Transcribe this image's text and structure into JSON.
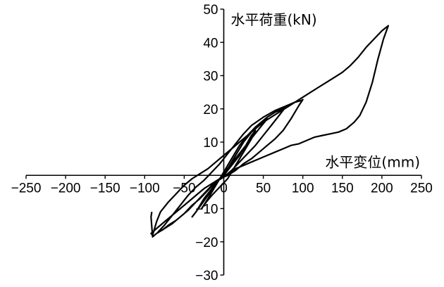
{
  "chart_data": {
    "type": "line",
    "title": "",
    "xlabel": "水平変位(mm)",
    "ylabel": "水平荷重(kN)",
    "xlim": [
      -250,
      250
    ],
    "ylim": [
      -30,
      50
    ],
    "x_ticks": [
      -250,
      -200,
      -150,
      -100,
      -50,
      0,
      50,
      100,
      150,
      200,
      250
    ],
    "y_ticks": [
      -30,
      -20,
      -10,
      10,
      20,
      30,
      40,
      50
    ],
    "x_tick_labels": [
      "−250",
      "−200",
      "−150",
      "−100",
      "−50",
      "0",
      "50",
      "100",
      "150",
      "200",
      "250"
    ],
    "y_tick_labels": [
      "−30",
      "−20",
      "−10",
      "10",
      "20",
      "30",
      "40",
      "50"
    ],
    "grid": false,
    "line_color": "#000000",
    "series": [
      {
        "values_xy": [
          [
            0,
            0
          ],
          [
            10,
            3
          ],
          [
            20,
            6
          ],
          [
            28,
            9
          ],
          [
            35,
            12
          ],
          [
            40,
            13.5
          ],
          [
            35,
            11
          ],
          [
            25,
            7
          ],
          [
            15,
            3
          ],
          [
            5,
            -1
          ],
          [
            -5,
            -3.5
          ],
          [
            -15,
            -6
          ],
          [
            -22,
            -8
          ],
          [
            -28,
            -10
          ],
          [
            -20,
            -7
          ],
          [
            -10,
            -3
          ],
          [
            0,
            1
          ],
          [
            10,
            5
          ],
          [
            20,
            9
          ],
          [
            30,
            12
          ],
          [
            40,
            14.5
          ],
          [
            50,
            16.5
          ],
          [
            55,
            17
          ],
          [
            48,
            15
          ],
          [
            38,
            12
          ],
          [
            28,
            9
          ],
          [
            18,
            6
          ],
          [
            8,
            3
          ],
          [
            -5,
            -1
          ],
          [
            -15,
            -4
          ],
          [
            -25,
            -7
          ],
          [
            -35,
            -11
          ],
          [
            -40,
            -12.5
          ],
          [
            -32,
            -10
          ],
          [
            -20,
            -6
          ],
          [
            -8,
            -2
          ],
          [
            5,
            2
          ],
          [
            15,
            6
          ],
          [
            25,
            10
          ],
          [
            35,
            13
          ],
          [
            45,
            15.5
          ],
          [
            55,
            17.5
          ],
          [
            65,
            19
          ],
          [
            75,
            20
          ],
          [
            78,
            20.5
          ],
          [
            70,
            18
          ],
          [
            60,
            15
          ],
          [
            50,
            12
          ],
          [
            40,
            9
          ],
          [
            30,
            6.5
          ],
          [
            20,
            4
          ],
          [
            10,
            1.5
          ],
          [
            0,
            -0.5
          ],
          [
            -10,
            -2
          ],
          [
            -20,
            -4.5
          ],
          [
            -30,
            -7
          ],
          [
            -40,
            -9
          ],
          [
            -50,
            -11.5
          ],
          [
            -60,
            -13.5
          ],
          [
            -70,
            -15
          ],
          [
            -78,
            -16.5
          ],
          [
            -83,
            -17
          ],
          [
            -75,
            -15
          ],
          [
            -65,
            -12
          ],
          [
            -55,
            -9
          ],
          [
            -45,
            -6
          ],
          [
            -35,
            -3.5
          ],
          [
            -25,
            -1.5
          ],
          [
            -15,
            1
          ],
          [
            -5,
            3.5
          ],
          [
            5,
            6.5
          ],
          [
            15,
            9.5
          ],
          [
            25,
            12.5
          ],
          [
            35,
            15
          ],
          [
            50,
            17.5
          ],
          [
            65,
            19.5
          ],
          [
            80,
            21
          ],
          [
            90,
            22
          ],
          [
            98,
            22.5
          ],
          [
            100,
            22.8
          ],
          [
            95,
            21
          ],
          [
            85,
            17
          ],
          [
            75,
            13.5
          ],
          [
            65,
            11
          ],
          [
            55,
            9
          ],
          [
            45,
            7
          ],
          [
            35,
            5
          ],
          [
            25,
            3.5
          ],
          [
            15,
            1.5
          ],
          [
            5,
            0
          ],
          [
            -5,
            -1
          ],
          [
            -15,
            -2.5
          ],
          [
            -25,
            -4
          ],
          [
            -35,
            -6
          ],
          [
            -45,
            -8
          ],
          [
            -55,
            -10
          ],
          [
            -65,
            -12
          ],
          [
            -75,
            -14
          ],
          [
            -85,
            -16
          ],
          [
            -92,
            -17.5
          ],
          [
            -90,
            -18
          ],
          [
            -85,
            -14
          ],
          [
            -80,
            -11
          ],
          [
            -70,
            -8
          ],
          [
            -60,
            -5.5
          ],
          [
            -50,
            -3
          ],
          [
            -40,
            -1
          ],
          [
            -30,
            0.5
          ],
          [
            -20,
            2
          ],
          [
            -10,
            4
          ],
          [
            0,
            6
          ],
          [
            10,
            8
          ],
          [
            20,
            10
          ],
          [
            30,
            12
          ],
          [
            40,
            14
          ],
          [
            50,
            16
          ],
          [
            60,
            17.5
          ],
          [
            70,
            19
          ],
          [
            80,
            20.5
          ],
          [
            90,
            22
          ],
          [
            100,
            23.5
          ],
          [
            110,
            25
          ],
          [
            120,
            26.5
          ],
          [
            130,
            28
          ],
          [
            140,
            29.5
          ],
          [
            150,
            31
          ],
          [
            160,
            33
          ],
          [
            170,
            35.5
          ],
          [
            180,
            38.5
          ],
          [
            190,
            41
          ],
          [
            200,
            43.5
          ],
          [
            208,
            45
          ],
          [
            202,
            41
          ],
          [
            195,
            35
          ],
          [
            188,
            28
          ],
          [
            180,
            22
          ],
          [
            172,
            18
          ],
          [
            165,
            16
          ],
          [
            155,
            14
          ],
          [
            145,
            13
          ],
          [
            135,
            12.5
          ],
          [
            125,
            12
          ],
          [
            115,
            11.5
          ],
          [
            105,
            10.5
          ],
          [
            95,
            9.5
          ],
          [
            85,
            9
          ],
          [
            75,
            8
          ],
          [
            65,
            7
          ],
          [
            55,
            6
          ],
          [
            45,
            5
          ],
          [
            35,
            4
          ],
          [
            25,
            3
          ],
          [
            15,
            2
          ],
          [
            5,
            0.5
          ],
          [
            -5,
            -1
          ],
          [
            -15,
            -3
          ],
          [
            -25,
            -5.5
          ],
          [
            -35,
            -8
          ],
          [
            -45,
            -10.5
          ],
          [
            -55,
            -12.5
          ],
          [
            -65,
            -14.5
          ],
          [
            -75,
            -16
          ],
          [
            -85,
            -17.5
          ],
          [
            -90,
            -18.5
          ],
          [
            -91,
            -15.5
          ],
          [
            -92,
            -12.5
          ],
          [
            -91,
            -11
          ]
        ]
      }
    ]
  }
}
